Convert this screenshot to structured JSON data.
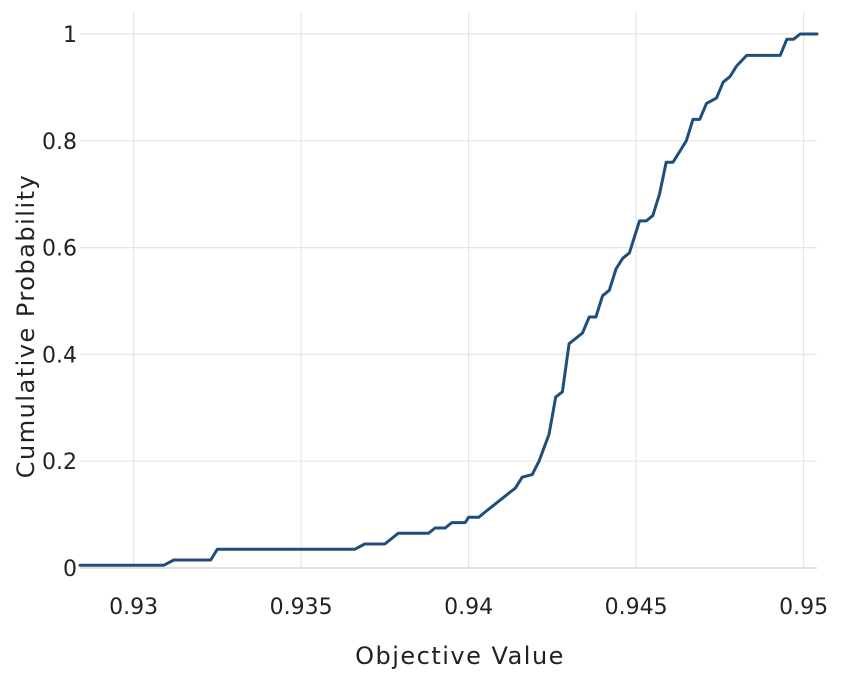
{
  "chart_data": {
    "type": "line",
    "title": "",
    "xlabel": "Objective Value",
    "ylabel": "Cumulative Probability",
    "xlim": [
      0.9284,
      0.9504
    ],
    "ylim": [
      0,
      1
    ],
    "x_ticks": [
      0.93,
      0.935,
      0.94,
      0.945,
      0.95
    ],
    "x_tick_labels": [
      "0.93",
      "0.935",
      "0.94",
      "0.945",
      "0.95"
    ],
    "y_ticks": [
      0,
      0.2,
      0.4,
      0.6,
      0.8,
      1
    ],
    "y_tick_labels": [
      "0",
      "0.2",
      "0.4",
      "0.6",
      "0.8",
      "1"
    ],
    "grid": true,
    "legend": "none",
    "line_color": "#1d4f7d",
    "series": [
      {
        "x": [
          0.9284,
          0.9309,
          0.9312,
          0.9323,
          0.9325,
          0.9366,
          0.9369,
          0.9375,
          0.9379,
          0.9388,
          0.939,
          0.9393,
          0.9395,
          0.9399,
          0.94,
          0.9403,
          0.9405,
          0.9414,
          0.9416,
          0.9419,
          0.9421,
          0.9424,
          0.9426,
          0.9428,
          0.943,
          0.9434,
          0.9436,
          0.9438,
          0.944,
          0.9442,
          0.9444,
          0.9446,
          0.9448,
          0.9451,
          0.9453,
          0.9455,
          0.9457,
          0.9459,
          0.9461,
          0.9463,
          0.9465,
          0.9467,
          0.9469,
          0.9471,
          0.9474,
          0.9476,
          0.9478,
          0.948,
          0.9483,
          0.9484,
          0.9486,
          0.9488,
          0.949,
          0.9493,
          0.9495,
          0.9497,
          0.9499,
          0.9501,
          0.9502,
          0.9504
        ],
        "y": [
          0.005,
          0.005,
          0.015,
          0.015,
          0.035,
          0.035,
          0.045,
          0.045,
          0.065,
          0.065,
          0.075,
          0.075,
          0.085,
          0.085,
          0.095,
          0.095,
          0.105,
          0.15,
          0.17,
          0.175,
          0.2,
          0.25,
          0.32,
          0.33,
          0.42,
          0.44,
          0.47,
          0.47,
          0.51,
          0.52,
          0.56,
          0.58,
          0.59,
          0.65,
          0.65,
          0.66,
          0.7,
          0.76,
          0.76,
          0.78,
          0.8,
          0.84,
          0.84,
          0.87,
          0.88,
          0.91,
          0.92,
          0.94,
          0.96,
          0.96,
          0.96,
          0.96,
          0.96,
          0.96,
          0.99,
          0.99,
          1.0,
          1.0,
          1.0,
          1.0
        ]
      }
    ]
  }
}
